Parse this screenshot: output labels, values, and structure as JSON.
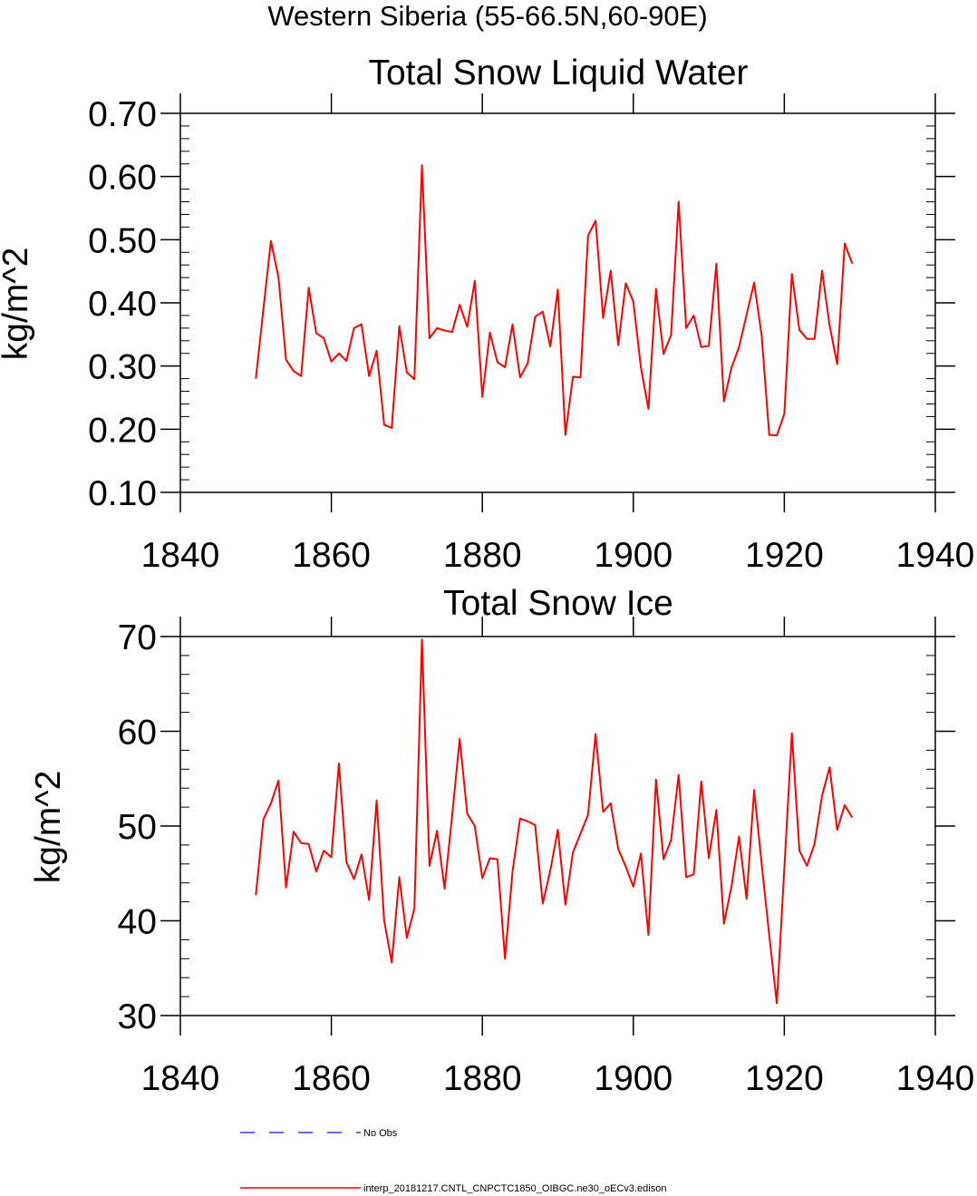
{
  "figure": {
    "suptitle": "Western Siberia (55-66.5N,60-90E)"
  },
  "colors": {
    "model": "#ff0000",
    "obs": "#3333ff",
    "frame": "#000000"
  },
  "chart_data": [
    {
      "type": "line",
      "title": "Total Snow Liquid Water",
      "xlabel": "",
      "ylabel": "kg/m^2",
      "xlim": [
        1840,
        1940
      ],
      "ylim": [
        0.1,
        0.7
      ],
      "xticks": [
        1840,
        1860,
        1880,
        1900,
        1920,
        1940
      ],
      "xtick_labels": [
        "1840",
        "1860",
        "1880",
        "1900",
        "1920",
        "1940"
      ],
      "yticks": [
        0.1,
        0.2,
        0.3,
        0.4,
        0.5,
        0.6,
        0.7
      ],
      "ytick_labels": [
        "0.10",
        "0.20",
        "0.30",
        "0.40",
        "0.50",
        "0.60",
        "0.70"
      ],
      "yminor_step": 0.02,
      "series": [
        {
          "name": "interp_20181217.CNTL_CNPCTC1850_OIBGC.ne30_oECv3.edison",
          "x_start": 1850,
          "values": [
            0.28,
            0.39,
            0.498,
            0.44,
            0.31,
            0.292,
            0.284,
            0.424,
            0.352,
            0.344,
            0.307,
            0.32,
            0.308,
            0.36,
            0.366,
            0.284,
            0.324,
            0.207,
            0.202,
            0.363,
            0.29,
            0.279,
            0.618,
            0.344,
            0.36,
            0.356,
            0.354,
            0.397,
            0.362,
            0.435,
            0.251,
            0.353,
            0.306,
            0.298,
            0.366,
            0.282,
            0.304,
            0.378,
            0.386,
            0.331,
            0.421,
            0.191,
            0.283,
            0.282,
            0.506,
            0.53,
            0.376,
            0.451,
            0.333,
            0.431,
            0.402,
            0.298,
            0.232,
            0.422,
            0.319,
            0.349,
            0.56,
            0.36,
            0.38,
            0.33,
            0.332,
            0.462,
            0.244,
            0.297,
            0.33,
            0.381,
            0.432,
            0.348,
            0.191,
            0.19,
            0.224,
            0.446,
            0.357,
            0.343,
            0.343,
            0.451,
            0.364,
            0.303,
            0.494,
            0.462
          ]
        }
      ]
    },
    {
      "type": "line",
      "title": "Total Snow Ice",
      "xlabel": "",
      "ylabel": "kg/m^2",
      "xlim": [
        1840,
        1940
      ],
      "ylim": [
        30,
        70
      ],
      "xticks": [
        1840,
        1860,
        1880,
        1900,
        1920,
        1940
      ],
      "xtick_labels": [
        "1840",
        "1860",
        "1880",
        "1900",
        "1920",
        "1940"
      ],
      "yticks": [
        30,
        40,
        50,
        60,
        70
      ],
      "ytick_labels": [
        "30",
        "40",
        "50",
        "60",
        "70"
      ],
      "yminor_step": 2,
      "series": [
        {
          "name": "interp_20181217.CNTL_CNPCTC1850_OIBGC.ne30_oECv3.edison",
          "x_start": 1850,
          "values": [
            42.7,
            50.7,
            52.4,
            54.8,
            43.5,
            49.4,
            48.2,
            48.1,
            45.2,
            47.4,
            46.7,
            56.6,
            46.2,
            44.4,
            47.0,
            42.2,
            52.7,
            40.0,
            35.6,
            44.6,
            38.2,
            41.3,
            69.7,
            45.8,
            49.5,
            43.4,
            51.1,
            59.2,
            51.3,
            50.0,
            44.5,
            46.6,
            46.5,
            36.0,
            45.2,
            50.8,
            50.5,
            50.1,
            41.8,
            45.3,
            49.6,
            41.7,
            47.2,
            49.2,
            51.2,
            59.7,
            51.5,
            52.4,
            47.6,
            45.7,
            43.6,
            47.1,
            38.5,
            54.9,
            46.5,
            48.5,
            55.4,
            44.6,
            44.9,
            54.7,
            46.6,
            51.7,
            39.7,
            43.6,
            48.9,
            42.3,
            53.8,
            46.0,
            38.5,
            31.3,
            45.5,
            59.8,
            47.4,
            45.8,
            48.1,
            53.2,
            56.2,
            49.6,
            52.2,
            50.9
          ]
        }
      ]
    }
  ],
  "legend": {
    "placement": "bottom",
    "entries": [
      {
        "label": "No Obs",
        "style": "dashed",
        "color": "#3333ff"
      },
      {
        "label": "interp_20181217.CNTL_CNPCTC1850_OIBGC.ne30_oECv3.edison",
        "style": "solid",
        "color": "#ff0000"
      }
    ]
  }
}
